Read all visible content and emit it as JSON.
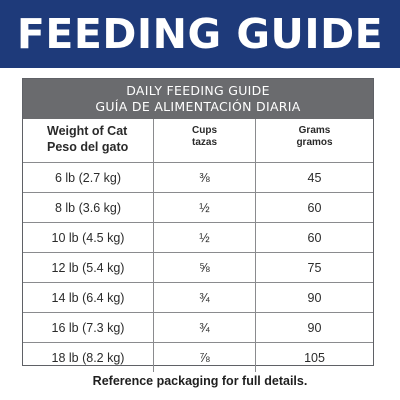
{
  "banner": {
    "title": "FEEDING GUIDE"
  },
  "table": {
    "heading_en": "DAILY FEEDING GUIDE",
    "heading_es": "GUÍA DE ALIMENTACIÓN DIARIA",
    "columns": {
      "weight_en": "Weight of Cat",
      "weight_es": "Peso del gato",
      "cups_en": "Cups",
      "cups_es": "tazas",
      "grams_en": "Grams",
      "grams_es": "gramos"
    },
    "rows": [
      {
        "weight": "6 lb (2.7 kg)",
        "cups": "⅜",
        "grams": "45"
      },
      {
        "weight": "8 lb (3.6 kg)",
        "cups": "½",
        "grams": "60"
      },
      {
        "weight": "10 lb (4.5 kg)",
        "cups": "½",
        "grams": "60"
      },
      {
        "weight": "12 lb (5.4 kg)",
        "cups": "⅝",
        "grams": "75"
      },
      {
        "weight": "14 lb (6.4 kg)",
        "cups": "¾",
        "grams": "90"
      },
      {
        "weight": "16 lb (7.3 kg)",
        "cups": "¾",
        "grams": "90"
      },
      {
        "weight": "18 lb (8.2 kg)",
        "cups": "⅞",
        "grams": "105"
      }
    ]
  },
  "footer": {
    "text": "Reference packaging for full details."
  },
  "colors": {
    "banner": "#1e3a7a",
    "table_heading": "#6a6b6e"
  }
}
